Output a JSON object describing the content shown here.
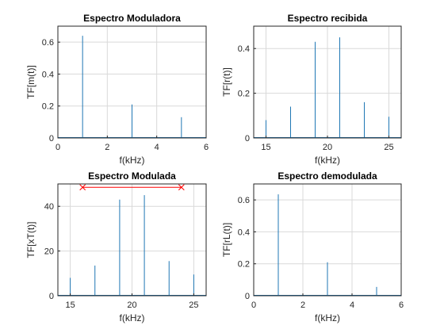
{
  "chart_data": [
    {
      "type": "bar",
      "title": "Espectro Moduladora",
      "xlabel": "f(kHz)",
      "ylabel": "TF[m(t)]",
      "xlim": [
        0,
        6
      ],
      "ylim": [
        0,
        0.7
      ],
      "xticks": [
        0,
        2,
        4,
        6
      ],
      "yticks": [
        0,
        0.2,
        0.4,
        0.6
      ],
      "grid": true,
      "x": [
        1,
        3,
        5
      ],
      "values": [
        0.64,
        0.21,
        0.13
      ]
    },
    {
      "type": "bar",
      "title": "Espectro recibida",
      "xlabel": "f(kHz)",
      "ylabel": "TF[r(t)]",
      "xlim": [
        14,
        26
      ],
      "ylim": [
        0,
        0.5
      ],
      "xticks": [
        15,
        20,
        25
      ],
      "yticks": [
        0,
        0.2,
        0.4
      ],
      "grid": true,
      "x": [
        15,
        17,
        19,
        21,
        23,
        25
      ],
      "values": [
        0.08,
        0.14,
        0.43,
        0.45,
        0.16,
        0.095
      ]
    },
    {
      "type": "bar",
      "title": "Espectro Modulada",
      "xlabel": "f(kHz)",
      "ylabel": "TF[xT(t)]",
      "xlim": [
        14,
        26
      ],
      "ylim": [
        0,
        50
      ],
      "xticks": [
        15,
        20,
        25
      ],
      "yticks": [
        0,
        20,
        40
      ],
      "grid": true,
      "x": [
        15,
        17,
        19,
        21,
        23,
        25
      ],
      "values": [
        8,
        13.5,
        43,
        45,
        15.5,
        9.5
      ],
      "annotation": {
        "type": "line",
        "color": "#ff0000",
        "marker": "x",
        "x": [
          16,
          24
        ],
        "y": [
          48.5,
          48.5
        ]
      }
    },
    {
      "type": "bar",
      "title": "Espectro demodulada",
      "xlabel": "f(kHz)",
      "ylabel": "TF[rL(t)]",
      "xlim": [
        0,
        6
      ],
      "ylim": [
        0,
        0.7
      ],
      "xticks": [
        0,
        2,
        4,
        6
      ],
      "yticks": [
        0,
        0.2,
        0.4,
        0.6
      ],
      "grid": true,
      "x": [
        1,
        3,
        5
      ],
      "values": [
        0.635,
        0.21,
        0.055
      ]
    }
  ]
}
